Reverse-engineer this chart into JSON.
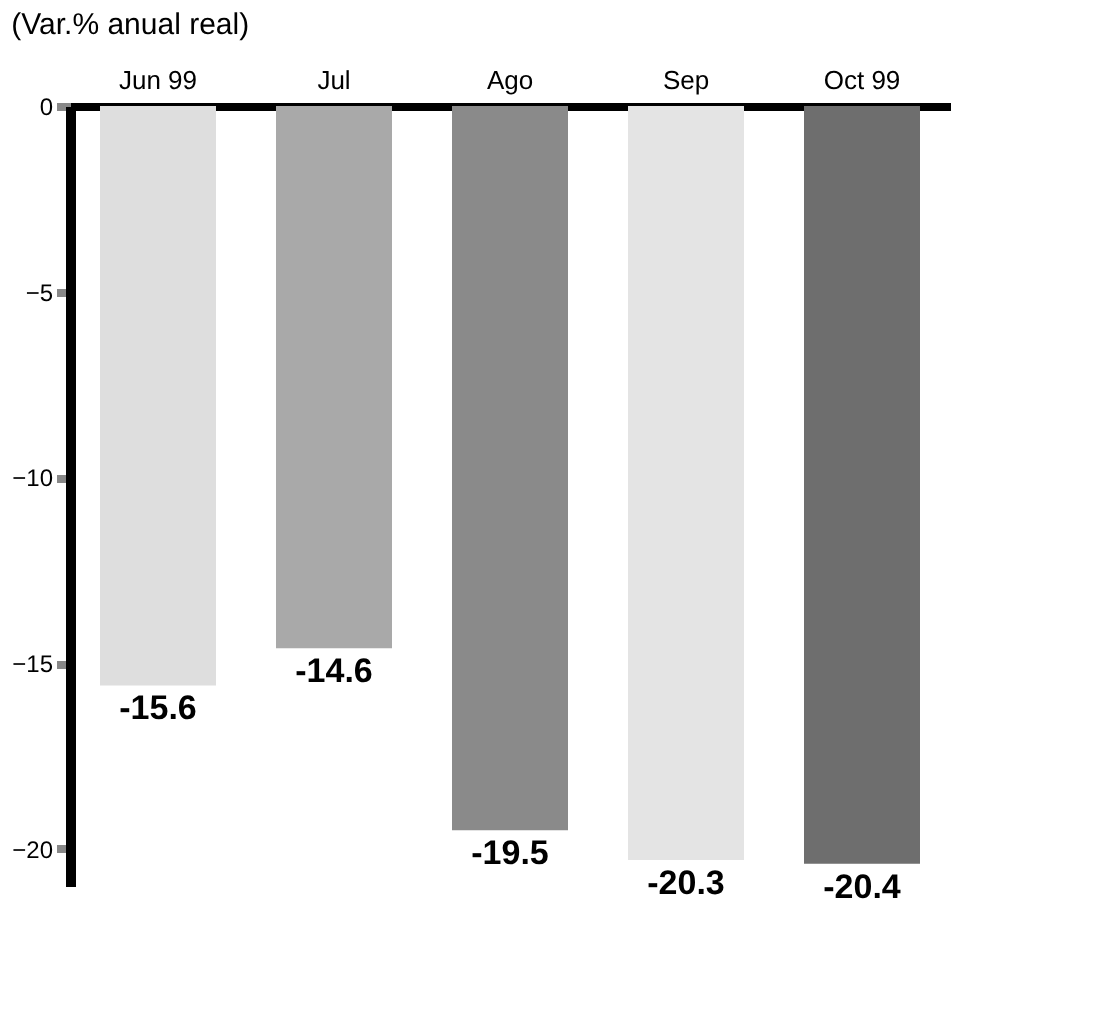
{
  "chart_data": {
    "type": "bar",
    "title": "(Var.% anual real)",
    "categories": [
      "Jun 99",
      "Jul",
      "Ago",
      "Sep",
      "Oct 99"
    ],
    "values": [
      -15.6,
      -14.6,
      -19.5,
      -20.3,
      -20.4
    ],
    "colors": [
      "#dedede",
      "#a9a9a9",
      "#8a8a8a",
      "#e4e4e4",
      "#6e6e6e"
    ],
    "ylim": [
      -21,
      0
    ],
    "yticks": [
      0,
      -5,
      -10,
      -15,
      -20
    ],
    "grid": false,
    "data_labels": true
  }
}
